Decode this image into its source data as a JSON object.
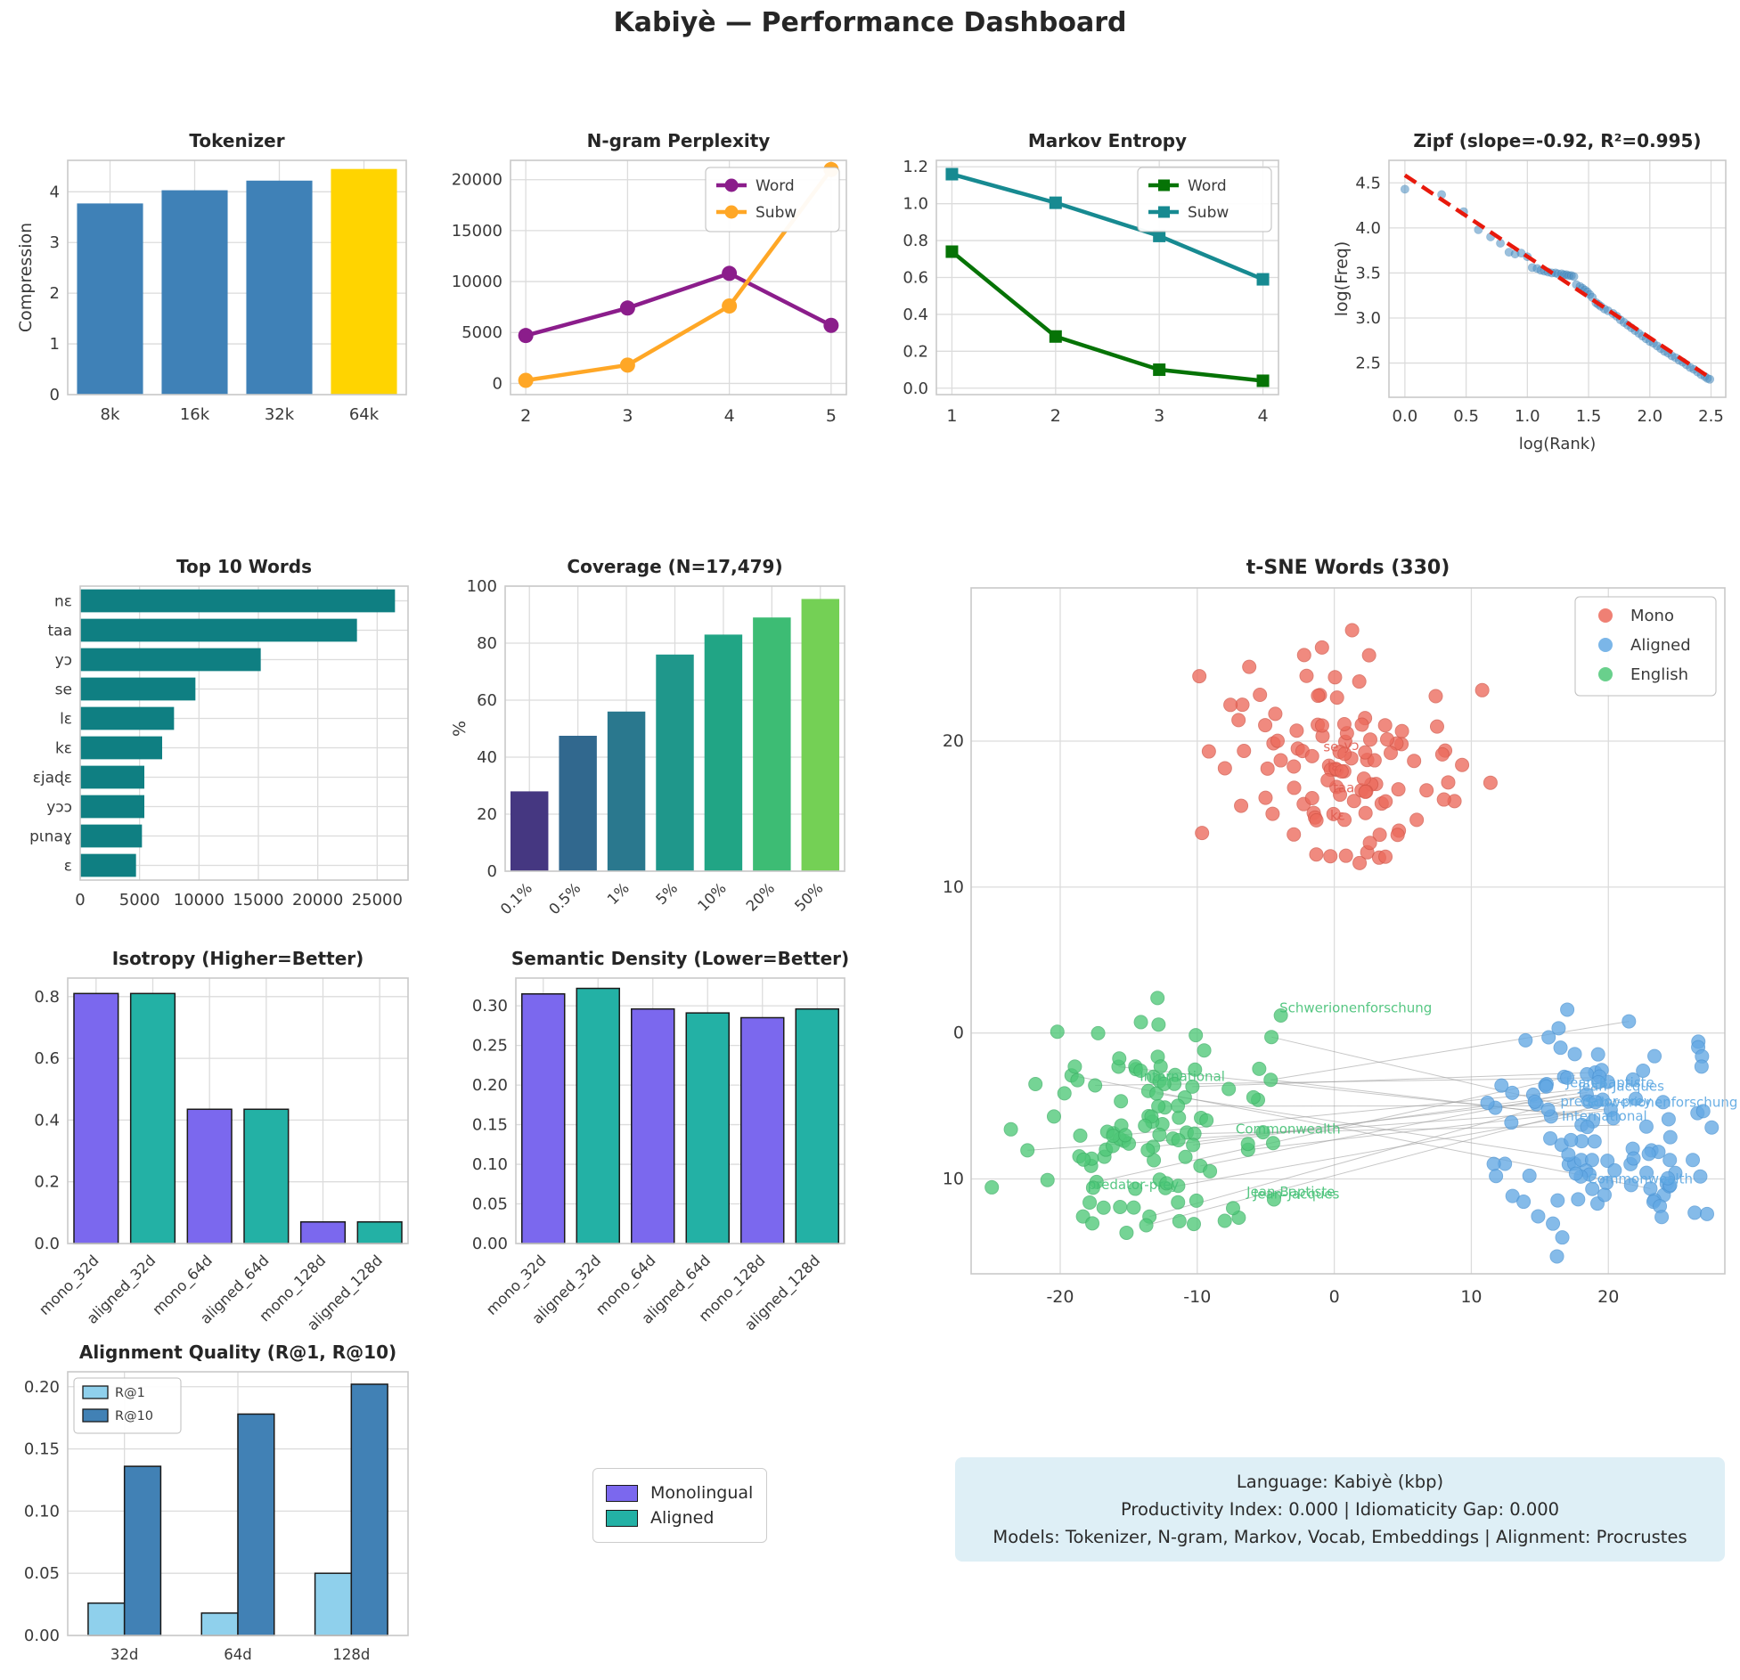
{
  "page_title": "Kabiyè — Performance Dashboard",
  "info_box": {
    "line1": "Language: Kabiyè (kbp)",
    "line2": "Productivity Index: 0.000  |  Idiomaticity Gap: 0.000",
    "line3": "Models: Tokenizer, N-gram, Markov, Vocab, Embeddings  |  Alignment: Procrustes"
  },
  "legend_box": {
    "items": [
      {
        "label": "Monolingual",
        "color": "#7b68ee"
      },
      {
        "label": "Aligned",
        "color": "#23b1a5"
      }
    ]
  },
  "chart_data": [
    {
      "id": "tokenizer",
      "type": "bar",
      "title": "Tokenizer",
      "ylabel": "Compression",
      "categories": [
        "8k",
        "16k",
        "32k",
        "64k"
      ],
      "values": [
        3.77,
        4.03,
        4.22,
        4.45
      ],
      "bar_colors": [
        "#3f81b7",
        "#3f81b7",
        "#3f81b7",
        "#ffd400"
      ],
      "ylim": [
        0,
        4.62
      ],
      "yticks": [
        0,
        1,
        2,
        3,
        4
      ],
      "ytick_labels": [
        "0",
        "1",
        "2",
        "3",
        "4"
      ]
    },
    {
      "id": "ngram",
      "type": "line",
      "title": "N-gram Perplexity",
      "x": [
        2,
        3,
        4,
        5
      ],
      "xticks": [
        2,
        3,
        4,
        5
      ],
      "xtick_labels": [
        "2",
        "3",
        "4",
        "5"
      ],
      "series": [
        {
          "name": "Word",
          "color": "#8b1d8b",
          "marker": "circle",
          "values": [
            4700,
            7400,
            10800,
            5700
          ]
        },
        {
          "name": "Subw",
          "color": "#ffa726",
          "marker": "circle",
          "values": [
            300,
            1800,
            7600,
            21000
          ]
        }
      ],
      "ylim": [
        -1100,
        21900
      ],
      "yticks": [
        0,
        5000,
        10000,
        15000,
        20000
      ],
      "ytick_labels": [
        "0",
        "5000",
        "10000",
        "15000",
        "20000"
      ],
      "legend_position": "top-right"
    },
    {
      "id": "markov",
      "type": "line",
      "title": "Markov Entropy",
      "x": [
        1,
        2,
        3,
        4
      ],
      "xticks": [
        1,
        2,
        3,
        4
      ],
      "xtick_labels": [
        "1",
        "2",
        "3",
        "4"
      ],
      "series": [
        {
          "name": "Word",
          "color": "#067306",
          "marker": "square",
          "values": [
            0.74,
            0.28,
            0.1,
            0.04
          ]
        },
        {
          "name": "Subw",
          "color": "#178a91",
          "marker": "square",
          "values": [
            1.16,
            1.005,
            0.825,
            0.59
          ]
        }
      ],
      "ylim": [
        -0.035,
        1.235
      ],
      "yticks": [
        0.0,
        0.2,
        0.4,
        0.6,
        0.8,
        1.0,
        1.2
      ],
      "ytick_labels": [
        "0.0",
        "0.2",
        "0.4",
        "0.6",
        "0.8",
        "1.0",
        "1.2"
      ],
      "legend_position": "top-right"
    },
    {
      "id": "zipf",
      "type": "scatter-fit",
      "title": "Zipf (slope=-0.92, R²=0.995)",
      "xlabel": "log(Rank)",
      "ylabel": "log(Freq)",
      "point_color": "#4a8ec2",
      "fit_color": "#e8190c",
      "xlim": [
        -0.13,
        2.62
      ],
      "ylim": [
        2.12,
        4.75
      ],
      "xticks": [
        0.0,
        0.5,
        1.0,
        1.5,
        2.0,
        2.5
      ],
      "xtick_labels": [
        "0.0",
        "0.5",
        "1.0",
        "1.5",
        "2.0",
        "2.5"
      ],
      "yticks": [
        2.5,
        3.0,
        3.5,
        4.0,
        4.5
      ],
      "ytick_labels": [
        "2.5",
        "3.0",
        "3.5",
        "4.0",
        "4.5"
      ],
      "fit_line": [
        [
          0.0,
          4.585
        ],
        [
          2.5,
          2.33
        ]
      ],
      "points": [
        [
          0.0,
          4.43
        ],
        [
          0.3,
          4.37
        ],
        [
          0.48,
          4.18
        ],
        [
          0.6,
          3.98
        ],
        [
          0.7,
          3.9
        ],
        [
          0.78,
          3.83
        ],
        [
          0.85,
          3.73
        ],
        [
          0.9,
          3.71
        ],
        [
          0.95,
          3.72
        ],
        [
          1.0,
          3.68
        ],
        [
          1.04,
          3.56
        ],
        [
          1.08,
          3.55
        ],
        [
          1.11,
          3.53
        ],
        [
          1.14,
          3.52
        ],
        [
          1.17,
          3.51
        ],
        [
          1.2,
          3.5
        ],
        [
          1.23,
          3.5
        ],
        [
          1.25,
          3.49
        ],
        [
          1.28,
          3.49
        ],
        [
          1.3,
          3.48
        ],
        [
          1.32,
          3.48
        ],
        [
          1.34,
          3.47
        ],
        [
          1.36,
          3.47
        ],
        [
          1.38,
          3.46
        ],
        [
          1.4,
          3.37
        ],
        [
          1.43,
          3.35
        ],
        [
          1.45,
          3.33
        ],
        [
          1.47,
          3.31
        ],
        [
          1.49,
          3.29
        ],
        [
          1.51,
          3.26
        ],
        [
          1.53,
          3.23
        ],
        [
          1.56,
          3.17
        ],
        [
          1.58,
          3.15
        ],
        [
          1.6,
          3.13
        ],
        [
          1.63,
          3.1
        ],
        [
          1.66,
          3.08
        ],
        [
          1.7,
          3.05
        ],
        [
          1.73,
          3.02
        ],
        [
          1.76,
          2.98
        ],
        [
          1.79,
          2.95
        ],
        [
          1.82,
          2.92
        ],
        [
          1.85,
          2.89
        ],
        [
          1.88,
          2.86
        ],
        [
          1.91,
          2.83
        ],
        [
          1.94,
          2.8
        ],
        [
          1.97,
          2.77
        ],
        [
          2.0,
          2.74
        ],
        [
          2.03,
          2.72
        ],
        [
          2.06,
          2.69
        ],
        [
          2.09,
          2.66
        ],
        [
          2.12,
          2.63
        ],
        [
          2.15,
          2.61
        ],
        [
          2.18,
          2.58
        ],
        [
          2.21,
          2.56
        ],
        [
          2.24,
          2.53
        ],
        [
          2.27,
          2.51
        ],
        [
          2.3,
          2.48
        ],
        [
          2.33,
          2.45
        ],
        [
          2.36,
          2.43
        ],
        [
          2.39,
          2.4
        ],
        [
          2.42,
          2.37
        ],
        [
          2.45,
          2.35
        ],
        [
          2.47,
          2.33
        ],
        [
          2.49,
          2.32
        ]
      ]
    },
    {
      "id": "top10",
      "type": "barh",
      "title": "Top 10 Words",
      "categories": [
        "nɛ",
        "taa",
        "yɔ",
        "se",
        "lɛ",
        "kɛ",
        "ɛjaɖɛ",
        "yɔɔ",
        "pɩnaɣ",
        "ɛ"
      ],
      "values": [
        26500,
        23300,
        15200,
        9700,
        7900,
        6900,
        5400,
        5400,
        5200,
        4700
      ],
      "bar_color": "#0f7f82",
      "xlim": [
        0,
        27600
      ],
      "xticks": [
        0,
        5000,
        10000,
        15000,
        20000,
        25000
      ],
      "xtick_labels": [
        "0",
        "5000",
        "10000",
        "15000",
        "20000",
        "25000"
      ]
    },
    {
      "id": "coverage",
      "type": "bar",
      "title": "Coverage (N=17,479)",
      "ylabel": "%",
      "categories": [
        "0.1%",
        "0.5%",
        "1%",
        "5%",
        "10%",
        "20%",
        "50%"
      ],
      "values": [
        28,
        47.5,
        56,
        76,
        83,
        89,
        95.5
      ],
      "bar_colors": [
        "#453781",
        "#31688e",
        "#2a788e",
        "#1f978b",
        "#21a585",
        "#3dbc74",
        "#74d055"
      ],
      "rotate_xticks": true,
      "ylim": [
        0,
        100
      ],
      "yticks": [
        0,
        20,
        40,
        60,
        80,
        100
      ],
      "ytick_labels": [
        "0",
        "20",
        "40",
        "60",
        "80",
        "100"
      ]
    },
    {
      "id": "tsne",
      "type": "tsne-scatter",
      "title": "t-SNE Words (330)",
      "xlim": [
        -26.5,
        28.5
      ],
      "ylim": [
        -16.5,
        30.5
      ],
      "xticks": [
        -20,
        -10,
        0,
        10,
        20
      ],
      "xtick_labels": [
        "-20",
        "-10",
        "0",
        "10",
        "20"
      ],
      "yticks": [
        -10,
        0,
        10,
        20
      ],
      "ytick_labels": [
        "-10",
        "0",
        "10",
        "20"
      ],
      "legend": [
        "Mono",
        "Aligned",
        "English"
      ],
      "clusters": [
        {
          "name": "Mono",
          "color": "#ec6a5c",
          "edge": "#d6584a",
          "n": 104,
          "cx": 0.5,
          "cy": 18.5,
          "sx": 4.6,
          "sy": 3.3,
          "seed": 7,
          "extra": [
            [
              1.3,
              27.6
            ],
            [
              -2.2,
              25.9
            ],
            [
              7.5,
              21.0
            ],
            [
              8.0,
              16.0
            ]
          ]
        },
        {
          "name": "Aligned",
          "color": "#64a9e4",
          "edge": "#4f97d6",
          "n": 104,
          "cx": 19.5,
          "cy": -7.0,
          "sx": 3.9,
          "sy": 3.4,
          "seed": 13,
          "extra": [
            [
              26.8,
              -2.3
            ],
            [
              27.2,
              -12.4
            ],
            [
              12.2,
              -3.6
            ],
            [
              11.8,
              -9.8
            ],
            [
              17.0,
              1.6
            ],
            [
              21.5,
              0.8
            ]
          ]
        },
        {
          "name": "English",
          "color": "#4fc878",
          "edge": "#3fb368",
          "n": 104,
          "cx": -14.0,
          "cy": -6.2,
          "sx": 4.3,
          "sy": 3.2,
          "seed": 29,
          "extra": [
            [
              -23.6,
              -6.6
            ],
            [
              -3.9,
              1.2
            ],
            [
              -4.4,
              -11.4
            ],
            [
              -12.9,
              2.4
            ],
            [
              -5.2,
              -6.8
            ],
            [
              -17.6,
              -10.6
            ]
          ]
        }
      ],
      "connector_count": 20,
      "connector_seed": 51,
      "word_labels": [
        {
          "text": "se",
          "x": -0.8,
          "y": 19.3,
          "color": "#e05c50"
        },
        {
          "text": "yɔ",
          "x": 0.7,
          "y": 19.4,
          "color": "#e05c50"
        },
        {
          "text": "lɛ,",
          "x": -0.5,
          "y": 18.0,
          "color": "#e05c50"
        },
        {
          "text": "taa",
          "x": -0.1,
          "y": 16.5,
          "color": "#e05c50"
        },
        {
          "text": "kɛ",
          "x": -0.3,
          "y": 14.6,
          "color": "#e05c50"
        },
        {
          "text": "Schwerionenforschung",
          "x": -4.0,
          "y": 1.4,
          "color": "#45c176"
        },
        {
          "text": "International",
          "x": -14.2,
          "y": -3.3,
          "color": "#45c176"
        },
        {
          "text": "Commonwealth",
          "x": -7.2,
          "y": -6.9,
          "color": "#45c176"
        },
        {
          "text": "predator-prey",
          "x": -18.0,
          "y": -10.7,
          "color": "#45c176"
        },
        {
          "text": "Jean-Baptiste",
          "x": -6.4,
          "y": -11.2,
          "color": "#45c176"
        },
        {
          "text": "Jean-Jacques",
          "x": -5.9,
          "y": -11.35,
          "color": "#45c176"
        },
        {
          "text": "Jean-Baptiste",
          "x": 16.9,
          "y": -3.7,
          "color": "#5ba7e2"
        },
        {
          "text": "Jean-Jacques",
          "x": 17.8,
          "y": -3.95,
          "color": "#5ba7e2"
        },
        {
          "text": "predator-prey",
          "x": 16.5,
          "y": -5.0,
          "color": "#5ba7e2"
        },
        {
          "text": "Schwerionenforschung",
          "x": 18.3,
          "y": -5.05,
          "color": "#5ba7e2"
        },
        {
          "text": "International",
          "x": 16.6,
          "y": -6.0,
          "color": "#5ba7e2"
        },
        {
          "text": "Commonwealth",
          "x": 18.5,
          "y": -10.3,
          "color": "#5ba7e2"
        }
      ]
    },
    {
      "id": "isotropy",
      "type": "bar",
      "title": "Isotropy (Higher=Better)",
      "categories": [
        "mono_32d",
        "aligned_32d",
        "mono_64d",
        "aligned_64d",
        "mono_128d",
        "aligned_128d"
      ],
      "values": [
        0.81,
        0.81,
        0.435,
        0.435,
        0.07,
        0.07
      ],
      "bar_colors": [
        "#7b68ee",
        "#23b1a5",
        "#7b68ee",
        "#23b1a5",
        "#7b68ee",
        "#23b1a5"
      ],
      "edge": "#1a1a1a",
      "rotate_xticks": true,
      "ylim": [
        0,
        0.86
      ],
      "yticks": [
        0.0,
        0.2,
        0.4,
        0.6,
        0.8
      ],
      "ytick_labels": [
        "0.0",
        "0.2",
        "0.4",
        "0.6",
        "0.8"
      ]
    },
    {
      "id": "semantic",
      "type": "bar",
      "title": "Semantic Density (Lower=Better)",
      "categories": [
        "mono_32d",
        "aligned_32d",
        "mono_64d",
        "aligned_64d",
        "mono_128d",
        "aligned_128d"
      ],
      "values": [
        0.315,
        0.322,
        0.296,
        0.291,
        0.285,
        0.296
      ],
      "bar_colors": [
        "#7b68ee",
        "#23b1a5",
        "#7b68ee",
        "#23b1a5",
        "#7b68ee",
        "#23b1a5"
      ],
      "edge": "#1a1a1a",
      "rotate_xticks": true,
      "ylim": [
        0,
        0.335
      ],
      "yticks": [
        0.0,
        0.05,
        0.1,
        0.15,
        0.2,
        0.25,
        0.3
      ],
      "ytick_labels": [
        "0.00",
        "0.05",
        "0.10",
        "0.15",
        "0.20",
        "0.25",
        "0.30"
      ]
    },
    {
      "id": "alignment",
      "type": "bar-group",
      "title": "Alignment Quality (R@1, R@10)",
      "categories": [
        "32d",
        "64d",
        "128d"
      ],
      "series": [
        {
          "name": "R@1",
          "color": "#8fd0ec",
          "values": [
            0.026,
            0.018,
            0.05
          ]
        },
        {
          "name": "R@10",
          "color": "#4181b5",
          "values": [
            0.136,
            0.178,
            0.202
          ]
        }
      ],
      "edge": "#1a1a1a",
      "ylim": [
        0,
        0.212
      ],
      "yticks": [
        0.0,
        0.05,
        0.1,
        0.15,
        0.2
      ],
      "ytick_labels": [
        "0.00",
        "0.05",
        "0.10",
        "0.15",
        "0.20"
      ],
      "legend_position": "top-left"
    }
  ]
}
